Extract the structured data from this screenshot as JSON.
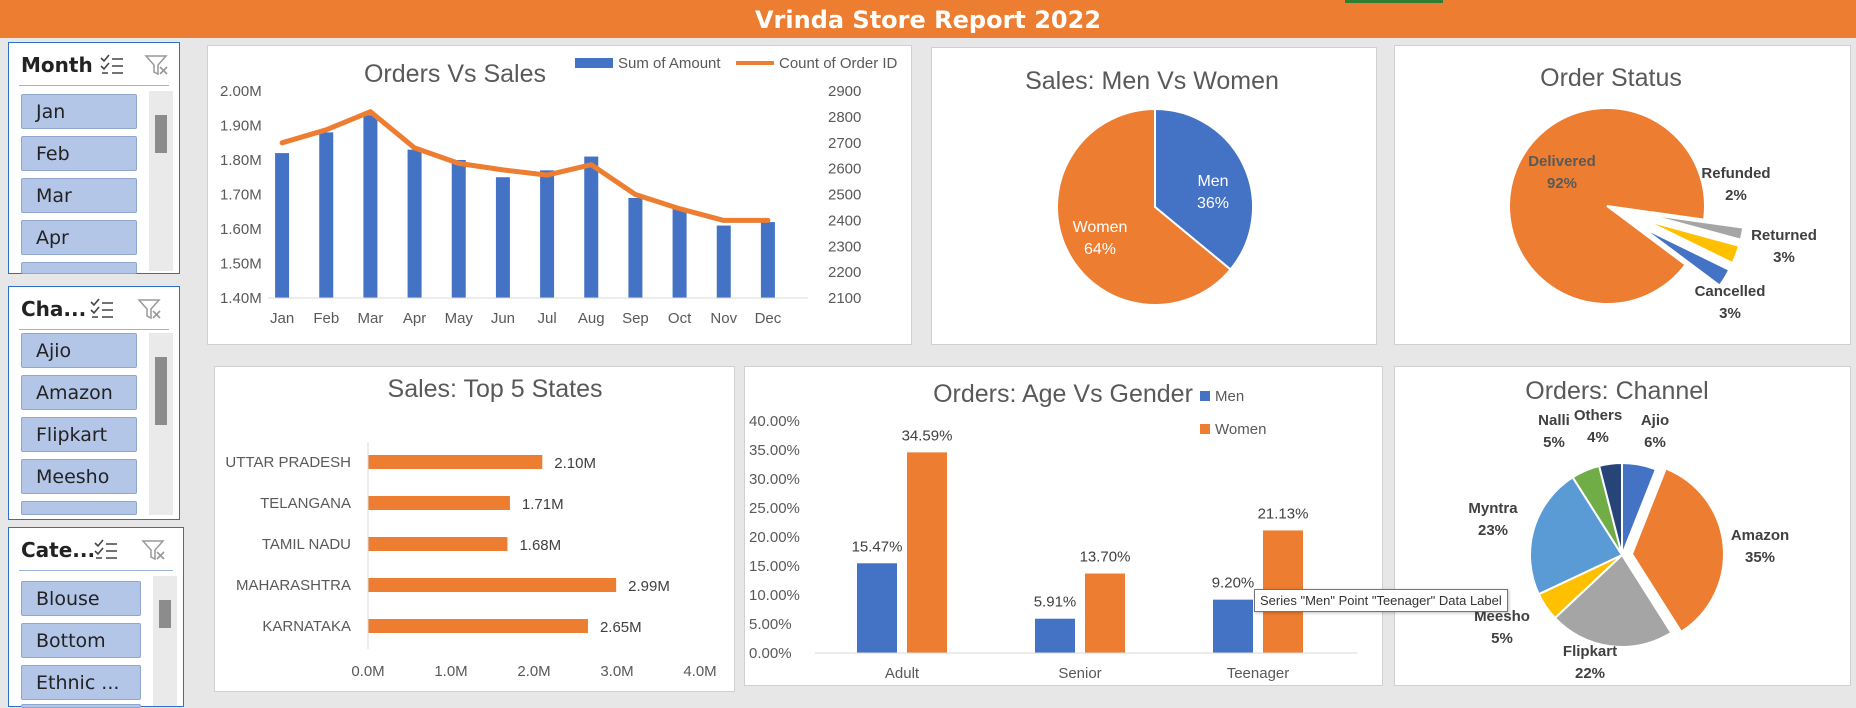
{
  "report": {
    "title": "Vrinda Store Report 2022"
  },
  "slicers": {
    "month": {
      "title": "Month",
      "items": [
        "Jan",
        "Feb",
        "Mar",
        "Apr"
      ]
    },
    "channel": {
      "title": "Cha...",
      "items": [
        "Ajio",
        "Amazon",
        "Flipkart",
        "Meesho"
      ]
    },
    "category": {
      "title": "Cate...",
      "items": [
        "Blouse",
        "Bottom",
        "Ethnic ..."
      ]
    }
  },
  "tooltip": {
    "text": "Series \"Men\" Point \"Teenager\" Data Label"
  },
  "colors": {
    "blue": "#4472c4",
    "orange": "#ed7d31",
    "gray": "#a5a5a5",
    "yellow": "#ffc000",
    "lightblue": "#5b9bd5",
    "green": "#70ad47",
    "navy": "#264478"
  },
  "chart_data": [
    {
      "id": "orders_vs_sales",
      "type": "bar+line",
      "title": "Orders Vs Sales",
      "categories": [
        "Jan",
        "Feb",
        "Mar",
        "Apr",
        "May",
        "Jun",
        "Jul",
        "Aug",
        "Sep",
        "Oct",
        "Nov",
        "Dec"
      ],
      "series": [
        {
          "name": "Sum of Amount",
          "type": "bar",
          "axis": "left",
          "values": [
            1.82,
            1.88,
            1.93,
            1.83,
            1.8,
            1.75,
            1.77,
            1.81,
            1.69,
            1.66,
            1.61,
            1.62
          ]
        },
        {
          "name": "Count of Order ID",
          "type": "line",
          "axis": "right",
          "values": [
            2700,
            2750,
            2820,
            2680,
            2620,
            2595,
            2575,
            2615,
            2500,
            2445,
            2400,
            2400
          ]
        }
      ],
      "left_axis": {
        "ticks": [
          "2.00M",
          "1.90M",
          "1.80M",
          "1.70M",
          "1.60M",
          "1.50M",
          "1.40M"
        ],
        "min": 1.4,
        "max": 2.0
      },
      "right_axis": {
        "ticks": [
          "2900",
          "2800",
          "2700",
          "2600",
          "2500",
          "2400",
          "2300",
          "2200",
          "2100"
        ],
        "min": 2100,
        "max": 2900
      },
      "legend": "top-right"
    },
    {
      "id": "men_vs_women",
      "type": "pie",
      "title": "Sales: Men Vs Women",
      "slices": [
        {
          "label": "Men",
          "percent": "36%",
          "value": 36,
          "color": "#4472c4"
        },
        {
          "label": "Women",
          "percent": "64%",
          "value": 64,
          "color": "#ed7d31"
        }
      ]
    },
    {
      "id": "order_status",
      "type": "pie",
      "title": "Order Status",
      "slices": [
        {
          "label": "Delivered",
          "percent": "92%",
          "value": 92,
          "color": "#ed7d31"
        },
        {
          "label": "Refunded",
          "percent": "2%",
          "value": 2,
          "color": "#a5a5a5"
        },
        {
          "label": "Returned",
          "percent": "3%",
          "value": 3,
          "color": "#ffc000"
        },
        {
          "label": "Cancelled",
          "percent": "3%",
          "value": 3,
          "color": "#4472c4"
        }
      ]
    },
    {
      "id": "top5_states",
      "type": "bar",
      "orientation": "horizontal",
      "title": "Sales: Top 5 States",
      "categories": [
        "UTTAR PRADESH",
        "TELANGANA",
        "TAMIL NADU",
        "MAHARASHTRA",
        "KARNATAKA"
      ],
      "values": [
        2.1,
        1.71,
        1.68,
        2.99,
        2.65
      ],
      "value_labels": [
        "2.10M",
        "1.71M",
        "1.68M",
        "2.99M",
        "2.65M"
      ],
      "x_ticks": [
        "0.0M",
        "1.0M",
        "2.0M",
        "3.0M",
        "4.0M"
      ],
      "xlim": [
        0,
        4
      ]
    },
    {
      "id": "age_vs_gender",
      "type": "bar",
      "title": "Orders: Age Vs Gender",
      "categories": [
        "Adult",
        "Senior",
        "Teenager"
      ],
      "series": [
        {
          "name": "Men",
          "values": [
            15.47,
            5.91,
            9.2
          ],
          "labels": [
            "15.47%",
            "5.91%",
            "9.20%"
          ],
          "color": "#4472c4"
        },
        {
          "name": "Women",
          "values": [
            34.59,
            13.7,
            21.13
          ],
          "labels": [
            "34.59%",
            "13.70%",
            "21.13%"
          ],
          "color": "#ed7d31"
        }
      ],
      "y_ticks": [
        "40.00%",
        "35.00%",
        "30.00%",
        "25.00%",
        "20.00%",
        "15.00%",
        "10.00%",
        "5.00%",
        "0.00%"
      ],
      "ylim": [
        0,
        40
      ],
      "legend": "top-right"
    },
    {
      "id": "orders_channel",
      "type": "pie",
      "title": "Orders: Channel",
      "slices": [
        {
          "label": "Ajio",
          "percent": "6%",
          "value": 6,
          "color": "#4472c4"
        },
        {
          "label": "Amazon",
          "percent": "35%",
          "value": 35,
          "color": "#ed7d31"
        },
        {
          "label": "Flipkart",
          "percent": "22%",
          "value": 22,
          "color": "#a5a5a5"
        },
        {
          "label": "Meesho",
          "percent": "5%",
          "value": 5,
          "color": "#ffc000"
        },
        {
          "label": "Myntra",
          "percent": "23%",
          "value": 23,
          "color": "#5b9bd5"
        },
        {
          "label": "Nalli",
          "percent": "5%",
          "value": 5,
          "color": "#70ad47"
        },
        {
          "label": "Others",
          "percent": "4%",
          "value": 4,
          "color": "#264478"
        }
      ]
    }
  ]
}
